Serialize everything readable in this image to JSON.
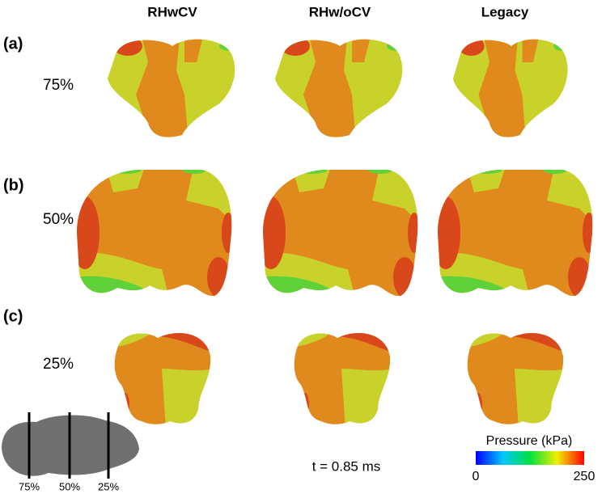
{
  "columns": [
    "RHwCV",
    "RHw/oCV",
    "Legacy"
  ],
  "rows": [
    {
      "label": "(a)",
      "level": "75%"
    },
    {
      "label": "(b)",
      "level": "50%"
    },
    {
      "label": "(c)",
      "level": "25%"
    }
  ],
  "time_label": "t = 0.85 ms",
  "colorbar": {
    "title": "Pressure (kPa)",
    "min": 0,
    "max": 250
  },
  "inset_labels": [
    "75%",
    "50%",
    "25%"
  ]
}
